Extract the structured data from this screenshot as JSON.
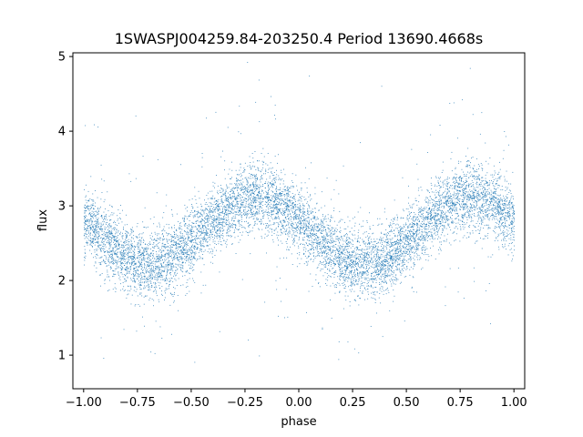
{
  "chart_data": {
    "type": "scatter",
    "title": "1SWASPJ004259.84-203250.4 Period 13690.4668s",
    "xlabel": "phase",
    "ylabel": "flux",
    "xlim": [
      -1.05,
      1.05
    ],
    "ylim": [
      0.55,
      5.05
    ],
    "x_ticks": [
      -1.0,
      -0.75,
      -0.5,
      -0.25,
      0.0,
      0.25,
      0.5,
      0.75,
      1.0
    ],
    "x_tick_labels": [
      "−1.00",
      "−0.75",
      "−0.50",
      "−0.25",
      "0.00",
      "0.25",
      "0.50",
      "0.75",
      "1.00"
    ],
    "y_ticks": [
      1,
      2,
      3,
      4,
      5
    ],
    "y_tick_labels": [
      "1",
      "2",
      "3",
      "4",
      "5"
    ],
    "grid": false,
    "marker_color": "#1f77b4",
    "curve_model": {
      "description": "phase-folded sinusoidal light curve",
      "mean_flux": 2.67,
      "amplitude": 0.45,
      "period_in_phase": 1.0,
      "max_at_phase": [
        -0.2,
        0.8
      ],
      "min_at_phase": [
        -0.7,
        0.3
      ],
      "scatter_sigma": 0.22
    },
    "series": [
      {
        "x": [
          -1.0,
          -0.9,
          -0.8,
          -0.7,
          -0.6,
          -0.5,
          -0.4,
          -0.3,
          -0.2,
          -0.1,
          0.0,
          0.1,
          0.2,
          0.3,
          0.4,
          0.5,
          0.6,
          0.7,
          0.8,
          0.9,
          1.0
        ],
        "y": [
          2.8,
          2.53,
          2.3,
          2.22,
          2.3,
          2.53,
          2.8,
          3.06,
          3.12,
          3.06,
          2.8,
          2.53,
          2.3,
          2.22,
          2.3,
          2.53,
          2.8,
          3.06,
          3.12,
          3.06,
          2.8
        ]
      }
    ]
  }
}
